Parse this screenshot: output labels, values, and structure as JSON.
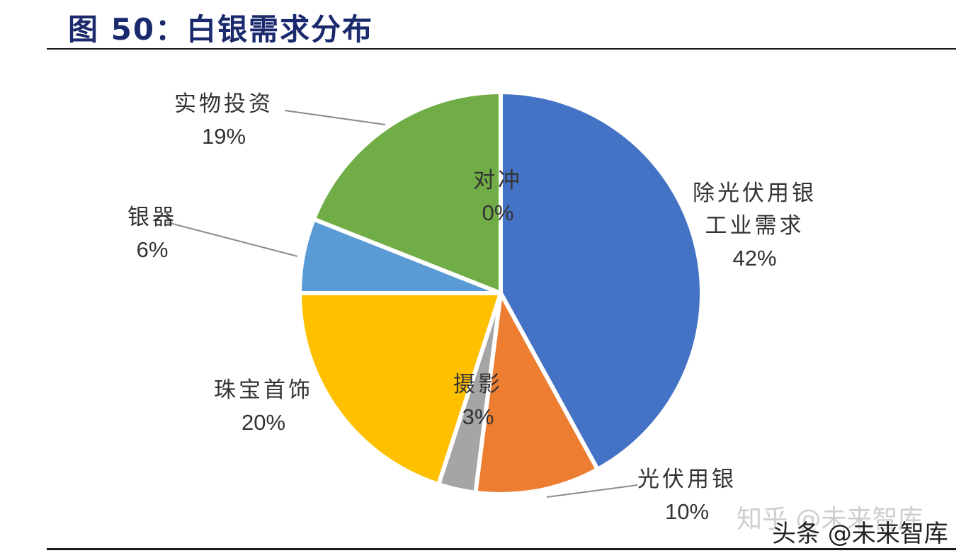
{
  "title": "图 50：白银需求分布",
  "chart_data": {
    "type": "pie",
    "title": "",
    "slices": [
      {
        "label": "除光伏用银\n工业需求",
        "value": 42,
        "pct_label": "42%",
        "color": "#4472C4"
      },
      {
        "label": "光伏用银",
        "value": 10,
        "pct_label": "10%",
        "color": "#ED7D31"
      },
      {
        "label": "摄影",
        "value": 3,
        "pct_label": "3%",
        "color": "#A5A5A5"
      },
      {
        "label": "珠宝首饰",
        "value": 20,
        "pct_label": "20%",
        "color": "#FFC000"
      },
      {
        "label": "银器",
        "value": 6,
        "pct_label": "6%",
        "color": "#5B9BD5"
      },
      {
        "label": "实物投资",
        "value": 19,
        "pct_label": "19%",
        "color": "#70AD47"
      },
      {
        "label": "对冲",
        "value": 0,
        "pct_label": "0%",
        "color": "#264478"
      }
    ]
  },
  "watermarks": {
    "zhihu": "知乎 @未来智库",
    "toutiao": "头条 @未来智库"
  }
}
